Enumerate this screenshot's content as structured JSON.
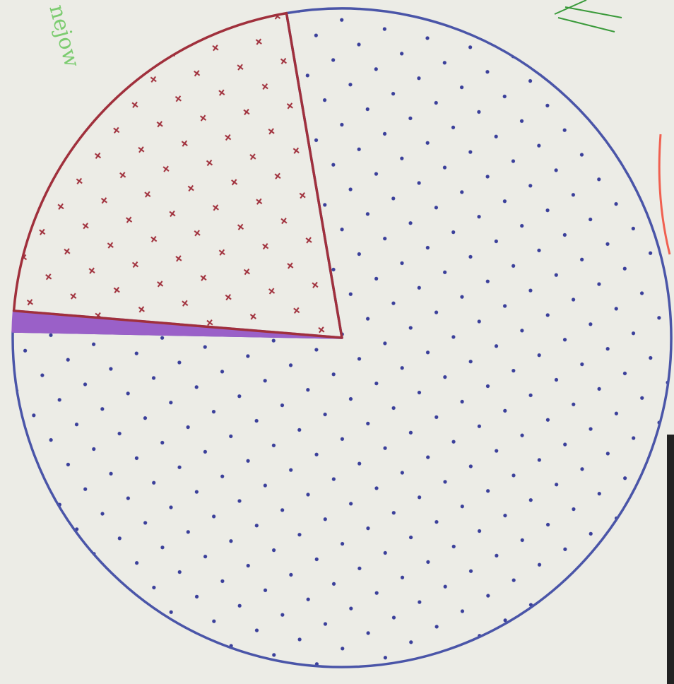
{
  "chart_data": {
    "type": "pie",
    "annotation": "nejow",
    "values": [
      78,
      1,
      21
    ],
    "colors": [
      "#4a55a8",
      "#9a60c8",
      "#a0303c"
    ]
  }
}
